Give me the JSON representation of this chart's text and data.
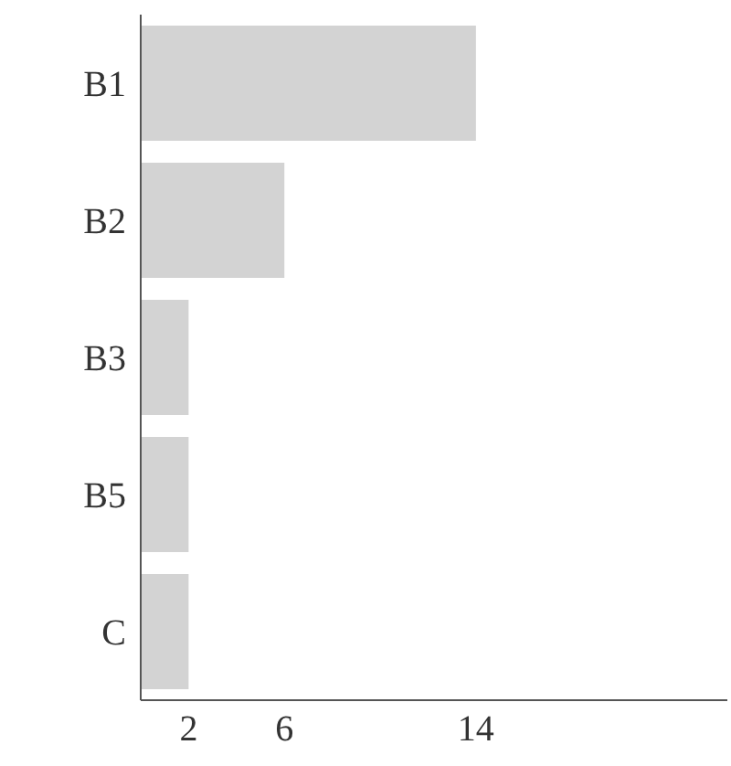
{
  "chart_data": {
    "type": "bar",
    "orientation": "horizontal",
    "categories": [
      "B1",
      "B2",
      "B3",
      "B5",
      "C"
    ],
    "values": [
      14,
      6,
      2,
      2,
      2
    ],
    "color": "#d3d3d3",
    "xlim": [
      0,
      24.5
    ],
    "xticks": [
      2,
      6,
      14
    ],
    "grid": false,
    "legend": false
  }
}
